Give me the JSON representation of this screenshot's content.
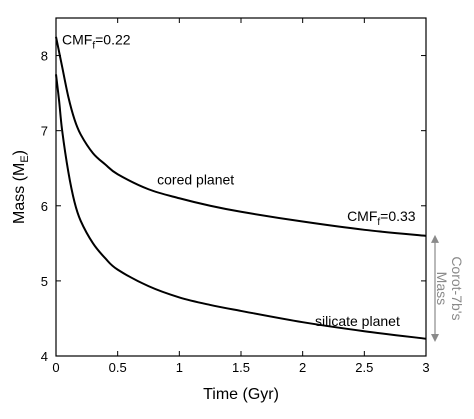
{
  "chart_data": {
    "type": "line",
    "title": "",
    "xlabel": "Time (Gyr)",
    "ylabel_main": "Mass (M",
    "ylabel_sub": "E",
    "ylabel_close": ")",
    "xlim": [
      0,
      3
    ],
    "ylim": [
      4,
      8.5
    ],
    "xticks": [
      0,
      0.5,
      1,
      1.5,
      2,
      2.5,
      3
    ],
    "xtick_labels": [
      "0",
      "0.5",
      "1",
      "1.5",
      "2",
      "2.5",
      "3"
    ],
    "yticks": [
      4,
      5,
      6,
      7,
      8
    ],
    "ytick_labels": [
      "4",
      "5",
      "6",
      "7",
      "8"
    ],
    "grid": false,
    "series": [
      {
        "label": "cored planet",
        "x": [
          0,
          0.025,
          0.05,
          0.1,
          0.15,
          0.2,
          0.3,
          0.4,
          0.5,
          0.75,
          1,
          1.25,
          1.5,
          2,
          2.5,
          3
        ],
        "y": [
          8.25,
          8.05,
          7.85,
          7.45,
          7.15,
          6.95,
          6.7,
          6.55,
          6.42,
          6.22,
          6.1,
          6.0,
          5.92,
          5.79,
          5.68,
          5.6
        ]
      },
      {
        "label": "silicate planet",
        "x": [
          0,
          0.025,
          0.05,
          0.1,
          0.15,
          0.2,
          0.3,
          0.4,
          0.5,
          0.75,
          1,
          1.25,
          1.5,
          2,
          2.5,
          3
        ],
        "y": [
          7.75,
          7.4,
          7.0,
          6.45,
          6.05,
          5.8,
          5.5,
          5.3,
          5.15,
          4.93,
          4.78,
          4.68,
          4.6,
          4.45,
          4.33,
          4.23
        ]
      }
    ],
    "annotations": {
      "cmf_top": {
        "main": "CMF",
        "sub": "f",
        "tail": "=0.22"
      },
      "cored_label": "cored planet",
      "cmf_right": {
        "main": "CMF",
        "sub": "f",
        "tail": "=0.33"
      },
      "silicate_label": "silicate planet"
    },
    "corot_range": {
      "label_line1": "Corot-7b's",
      "label_line2": "Mass",
      "ymin": 4.2,
      "ymax": 5.6,
      "color": "#8a8a8a"
    }
  }
}
